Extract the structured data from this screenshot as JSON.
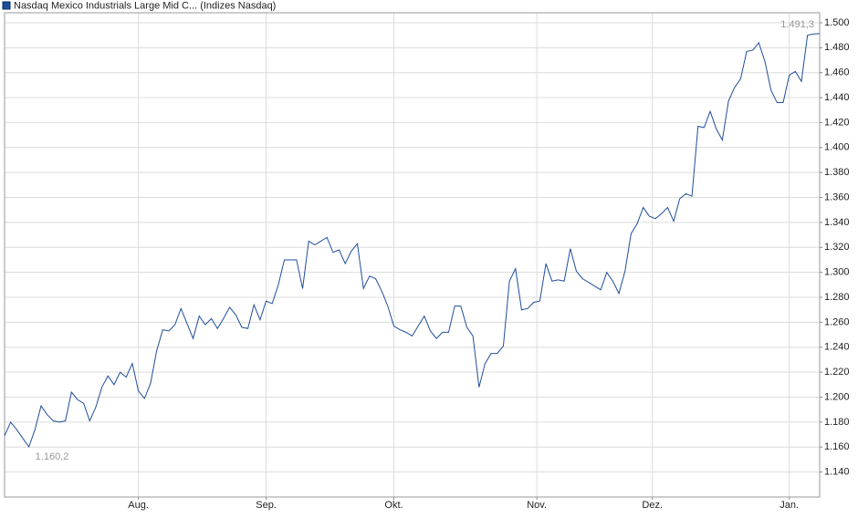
{
  "chart_data": {
    "type": "line",
    "series": [
      {
        "name": "Nasdaq Mexico Industrials Large Mid C... (Indizes Nasdaq)",
        "color": "#1f4e9c",
        "values": [
          1.169,
          1.18,
          1.174,
          1.167,
          1.1602,
          1.174,
          1.193,
          1.186,
          1.181,
          1.18,
          1.181,
          1.204,
          1.198,
          1.195,
          1.181,
          1.192,
          1.208,
          1.217,
          1.21,
          1.22,
          1.216,
          1.227,
          1.205,
          1.199,
          1.211,
          1.237,
          1.254,
          1.253,
          1.258,
          1.271,
          1.259,
          1.247,
          1.265,
          1.258,
          1.263,
          1.255,
          1.263,
          1.272,
          1.266,
          1.256,
          1.255,
          1.274,
          1.262,
          1.277,
          1.275,
          1.29,
          1.31,
          1.31,
          1.31,
          1.287,
          1.325,
          1.322,
          1.325,
          1.328,
          1.316,
          1.318,
          1.307,
          1.317,
          1.323,
          1.287,
          1.297,
          1.295,
          1.285,
          1.273,
          1.257,
          1.254,
          1.252,
          1.249,
          1.257,
          1.265,
          1.253,
          1.247,
          1.252,
          1.252,
          1.273,
          1.273,
          1.256,
          1.249,
          1.208,
          1.227,
          1.235,
          1.235,
          1.241,
          1.293,
          1.303,
          1.27,
          1.271,
          1.276,
          1.277,
          1.307,
          1.293,
          1.294,
          1.293,
          1.319,
          1.301,
          1.295,
          1.292,
          1.289,
          1.286,
          1.3,
          1.293,
          1.283,
          1.301,
          1.331,
          1.339,
          1.352,
          1.345,
          1.343,
          1.347,
          1.352,
          1.341,
          1.359,
          1.363,
          1.361,
          1.417,
          1.416,
          1.429,
          1.415,
          1.406,
          1.437,
          1.448,
          1.455,
          1.477,
          1.478,
          1.484,
          1.469,
          1.446,
          1.436,
          1.436,
          1.458,
          1.461,
          1.453,
          1.49,
          1.491,
          1.4913
        ]
      }
    ],
    "xlim": [
      0,
      134
    ],
    "xticks": [
      {
        "value": 22,
        "label": "Aug."
      },
      {
        "value": 43,
        "label": "Sep."
      },
      {
        "value": 64,
        "label": "Okt."
      },
      {
        "value": 87.5,
        "label": "Nov."
      },
      {
        "value": 106.5,
        "label": "Dez."
      },
      {
        "value": 129,
        "label": "Jan."
      }
    ],
    "ylim": [
      1.12,
      1.508
    ],
    "yticks": [
      {
        "value": 1.14,
        "label": "1.140"
      },
      {
        "value": 1.16,
        "label": "1.160"
      },
      {
        "value": 1.18,
        "label": "1.180"
      },
      {
        "value": 1.2,
        "label": "1.200"
      },
      {
        "value": 1.22,
        "label": "1.220"
      },
      {
        "value": 1.24,
        "label": "1.240"
      },
      {
        "value": 1.26,
        "label": "1.260"
      },
      {
        "value": 1.28,
        "label": "1.280"
      },
      {
        "value": 1.3,
        "label": "1.300"
      },
      {
        "value": 1.32,
        "label": "1.320"
      },
      {
        "value": 1.34,
        "label": "1.340"
      },
      {
        "value": 1.36,
        "label": "1.360"
      },
      {
        "value": 1.38,
        "label": "1.380"
      },
      {
        "value": 1.4,
        "label": "1.400"
      },
      {
        "value": 1.42,
        "label": "1.420"
      },
      {
        "value": 1.44,
        "label": "1.440"
      },
      {
        "value": 1.46,
        "label": "1.460"
      },
      {
        "value": 1.48,
        "label": "1.480"
      },
      {
        "value": 1.5,
        "label": "1.500"
      }
    ],
    "annotations": [
      {
        "label": "1.491,3",
        "value": 1.4913
      },
      {
        "label": "1.160,2",
        "value": 1.1602
      }
    ],
    "grid": true
  }
}
